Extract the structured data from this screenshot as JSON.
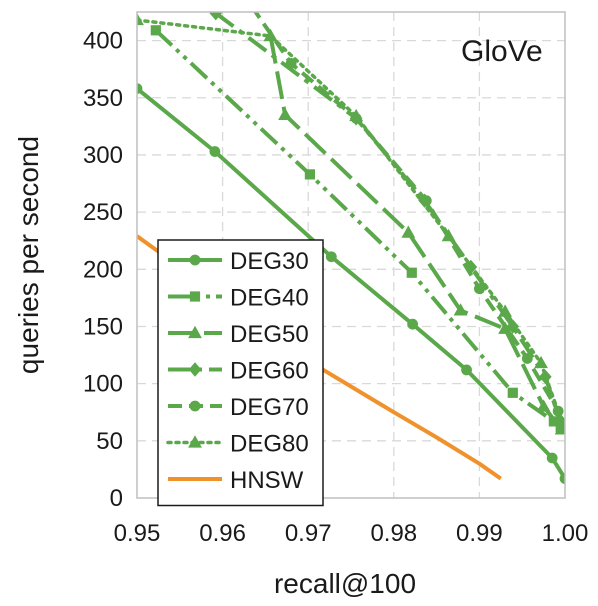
{
  "chart_data": {
    "type": "line",
    "title": "",
    "annotation": "GloVe",
    "xlabel": "recall@100",
    "ylabel": "queries per second",
    "xlim": [
      0.95,
      1.0
    ],
    "ylim": [
      0,
      425
    ],
    "xticks": [
      0.95,
      0.96,
      0.97,
      0.98,
      0.99,
      1.0
    ],
    "xtick_labels": [
      "0.95",
      "0.96",
      "0.97",
      "0.98",
      "0.99",
      "1.00"
    ],
    "yticks": [
      0,
      50,
      100,
      150,
      200,
      250,
      300,
      350,
      400
    ],
    "ytick_labels": [
      "0",
      "50",
      "100",
      "150",
      "200",
      "250",
      "300",
      "350",
      "400"
    ],
    "grid": true,
    "legend_position": "lower-left",
    "series": [
      {
        "name": "DEG30",
        "color": "#5aa84a",
        "dash": "solid",
        "marker": "circle",
        "x": [
          0.95,
          0.9591,
          0.9727,
          0.9822,
          0.9885,
          0.9985,
          1.0
        ],
        "y": [
          358,
          303,
          211,
          152,
          112,
          35,
          17
        ]
      },
      {
        "name": "DEG40",
        "color": "#5aa84a",
        "dash": "dashdotdot",
        "marker": "square",
        "x": [
          0.9522,
          0.9702,
          0.9821,
          0.9939,
          0.9987,
          0.9995
        ],
        "y": [
          409,
          283,
          197,
          92,
          67,
          62
        ]
      },
      {
        "name": "DEG50",
        "color": "#5aa84a",
        "dash": "longdash",
        "marker": "triangle",
        "x": [
          0.9656,
          0.9673,
          0.9817,
          0.9878,
          0.993,
          0.9975,
          0.9996
        ],
        "y": [
          404,
          335,
          232,
          164,
          148,
          80,
          60
        ]
      },
      {
        "name": "DEG60",
        "color": "#5aa84a",
        "dash": "dashdot",
        "marker": "diamond",
        "x": [
          0.9592,
          0.9756,
          0.9836,
          0.989,
          0.9939,
          0.9977,
          0.9994
        ],
        "y": [
          424,
          332,
          260,
          202,
          150,
          106,
          68
        ]
      },
      {
        "name": "DEG70",
        "color": "#5aa84a",
        "dash": "dash",
        "marker": "circle",
        "x": [
          0.9634,
          0.968,
          0.9756,
          0.9838,
          0.99,
          0.9956,
          0.9992
        ],
        "y": [
          430,
          380,
          332,
          260,
          183,
          122,
          76
        ]
      },
      {
        "name": "DEG80",
        "color": "#5aa84a",
        "dash": "dot",
        "marker": "triangle",
        "x": [
          0.95,
          0.9656,
          0.9756,
          0.9864,
          0.993,
          0.9972,
          0.9998
        ],
        "y": [
          418,
          404,
          334,
          229,
          163,
          118,
          63
        ]
      },
      {
        "name": "HNSW",
        "color": "#f0922b",
        "dash": "solid",
        "marker": "none",
        "x": [
          0.95,
          0.96,
          0.97,
          0.98,
          0.985,
          0.99,
          0.9925
        ],
        "y": [
          229,
          175,
          120,
          75,
          53,
          30,
          17
        ]
      }
    ]
  }
}
